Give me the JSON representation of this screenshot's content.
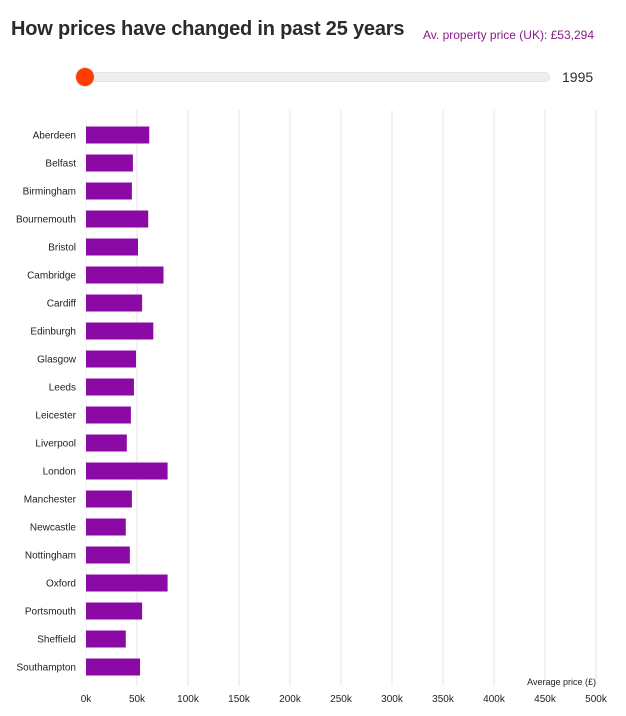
{
  "header": {
    "title": "How prices have changed in past 25 years",
    "avg_label": "Av. property price (UK): £53,294"
  },
  "slider": {
    "year": "1995",
    "value_fraction": 0
  },
  "colors": {
    "bar": "#8b0aa5",
    "accent": "#ff3d00",
    "grid": "#e6e6e6"
  },
  "chart_data": {
    "type": "bar",
    "orientation": "horizontal",
    "categories": [
      "Aberdeen",
      "Belfast",
      "Birmingham",
      "Bournemouth",
      "Bristol",
      "Cambridge",
      "Cardiff",
      "Edinburgh",
      "Glasgow",
      "Leeds",
      "Leicester",
      "Liverpool",
      "London",
      "Manchester",
      "Newcastle",
      "Nottingham",
      "Oxford",
      "Portsmouth",
      "Sheffield",
      "Southampton"
    ],
    "values": [
      62000,
      46000,
      45000,
      61000,
      51000,
      76000,
      55000,
      66000,
      49000,
      47000,
      44000,
      40000,
      80000,
      45000,
      39000,
      43000,
      80000,
      55000,
      39000,
      53000
    ],
    "xlim": [
      0,
      500000
    ],
    "ticks": [
      0,
      50000,
      100000,
      150000,
      200000,
      250000,
      300000,
      350000,
      400000,
      450000,
      500000
    ],
    "tick_labels": [
      "0k",
      "50k",
      "100k",
      "150k",
      "200k",
      "250k",
      "300k",
      "350k",
      "400k",
      "450k",
      "500k"
    ],
    "xlabel": "Average price (£)",
    "grid": true
  }
}
